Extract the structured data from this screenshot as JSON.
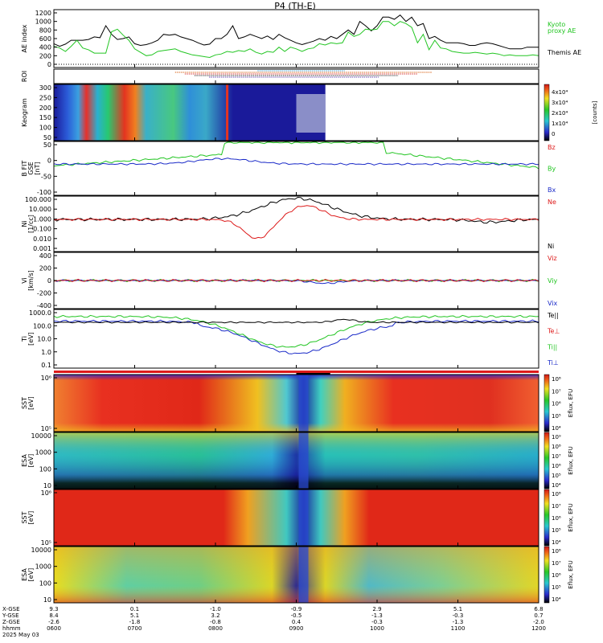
{
  "title": "P4 (TH-E)",
  "chart_data": [
    {
      "type": "line",
      "panel": "ae",
      "ylabel": "AE index",
      "yticks": [
        "1200",
        "1000",
        "800",
        "600",
        "400",
        "200",
        "0"
      ],
      "ylim": [
        0,
        1200
      ],
      "legend": [
        {
          "text": "Kyoto",
          "color": "#22c522"
        },
        {
          "text": "proxy AE",
          "color": "#22c522"
        },
        {
          "text": "Themis AE",
          "color": "#000000"
        }
      ],
      "series": [
        {
          "name": "Themis AE",
          "color": "#000000",
          "values": [
            480,
            420,
            470,
            560,
            560,
            560,
            580,
            640,
            620,
            900,
            700,
            580,
            600,
            640,
            480,
            440,
            460,
            500,
            560,
            700,
            680,
            700,
            640,
            600,
            560,
            500,
            450,
            470,
            600,
            600,
            700,
            900,
            600,
            640,
            700,
            650,
            600,
            660,
            580,
            700,
            620,
            560,
            500,
            460,
            500,
            540,
            600,
            560,
            650,
            600,
            700,
            800,
            700,
            1000,
            900,
            780,
            900,
            1100,
            1100,
            1050,
            1150,
            1000,
            1100,
            900,
            950,
            600,
            650,
            560,
            500,
            500,
            500,
            480,
            440,
            440,
            480,
            500,
            480,
            440,
            400,
            360,
            360,
            360,
            400,
            400,
            400
          ]
        },
        {
          "name": "Kyoto proxy AE",
          "color": "#22c522",
          "values": [
            420,
            380,
            300,
            420,
            560,
            380,
            340,
            260,
            260,
            260,
            760,
            820,
            680,
            560,
            360,
            280,
            200,
            220,
            300,
            320,
            340,
            360,
            300,
            260,
            220,
            200,
            180,
            160,
            220,
            240,
            300,
            280,
            320,
            300,
            360,
            280,
            240,
            300,
            280,
            400,
            300,
            400,
            360,
            300,
            360,
            380,
            480,
            450,
            500,
            480,
            500,
            750,
            650,
            700,
            820,
            800,
            820,
            1000,
            1000,
            900,
            1000,
            950,
            860,
            500,
            700,
            340,
            560,
            380,
            360,
            300,
            280,
            260,
            260,
            280,
            260,
            240,
            260,
            240,
            200,
            220,
            200,
            200,
            200,
            220,
            200
          ]
        }
      ]
    },
    {
      "type": "line",
      "panel": "roi",
      "ylabel": "ROI",
      "bars": [
        {
          "color": "#4aa8d8",
          "start": 0.42,
          "end": 0.6,
          "row": 0
        },
        {
          "color": "#d8641a",
          "start": 0.25,
          "end": 0.78,
          "row": 1
        },
        {
          "color": "#d83a3a",
          "start": 0.27,
          "end": 0.75,
          "row": 2
        },
        {
          "color": "#333333",
          "start": 0.29,
          "end": 0.71,
          "row": 3
        },
        {
          "color": "#6a4ab0",
          "start": 0.32,
          "end": 0.67,
          "row": 4
        }
      ]
    },
    {
      "type": "heatmap",
      "panel": "keogram",
      "ylabel": "Keogram",
      "yticks": [
        "300",
        "250",
        "200",
        "150",
        "100",
        "50"
      ],
      "colorbar": {
        "ticks": [
          "4x10⁴",
          "3x10⁴",
          "2x10⁴",
          "1x10⁴",
          "0"
        ],
        "label": "[counts]"
      }
    },
    {
      "type": "line",
      "panel": "bfield",
      "ylabel": [
        "B FIT",
        "GSE",
        "[nT]"
      ],
      "yticks": [
        "50",
        "0",
        "-50",
        "-100"
      ],
      "ylim": [
        -100,
        70
      ],
      "legend": [
        {
          "text": "Bz",
          "color": "#dd1a1a"
        },
        {
          "text": "By",
          "color": "#22c522"
        },
        {
          "text": "Bx",
          "color": "#1a2ac8"
        }
      ]
    },
    {
      "type": "line",
      "panel": "density",
      "ylabel": [
        "Ni",
        "[1/cc]"
      ],
      "yticks": [
        "100.000",
        "10.000",
        "1.000",
        "0.100",
        "0.010",
        "0.001"
      ],
      "legend": [
        {
          "text": "Ne",
          "color": "#dd1a1a"
        },
        {
          "text": "Ni",
          "color": "#000000"
        }
      ]
    },
    {
      "type": "line",
      "panel": "velocity",
      "ylabel": [
        "Vi",
        "[km/s]"
      ],
      "yticks": [
        "400",
        "200",
        "0",
        "-200",
        "-400"
      ],
      "ylim": [
        -500,
        500
      ],
      "legend": [
        {
          "text": "Viz",
          "color": "#dd1a1a"
        },
        {
          "text": "Viy",
          "color": "#22c522"
        },
        {
          "text": "Vix",
          "color": "#1a2ac8"
        }
      ]
    },
    {
      "type": "line",
      "panel": "temperature",
      "ylabel": [
        "Ti",
        "[eV]"
      ],
      "yticks": [
        "1000.0",
        "100.0",
        "10.0",
        "1.0",
        "0.1"
      ],
      "legend": [
        {
          "text": "Te||",
          "color": "#000000"
        },
        {
          "text": "Te⊥",
          "color": "#dd1a1a"
        },
        {
          "text": "Ti||",
          "color": "#22c522"
        },
        {
          "text": "Ti⊥",
          "color": "#1a2ac8"
        }
      ]
    },
    {
      "type": "heatmap",
      "panel": "sst-electron",
      "ylabel": [
        "SST",
        "[eV]"
      ],
      "yticks": [
        "10⁶",
        "10⁵"
      ],
      "colorbar": {
        "ticks": [
          "10⁸",
          "10⁷",
          "10⁶",
          "10⁵",
          "10⁴"
        ],
        "label": "Eflux, EFU"
      }
    },
    {
      "type": "heatmap",
      "panel": "esa-electron",
      "ylabel": [
        "ESA",
        "[eV]"
      ],
      "yticks": [
        "10000",
        "1000",
        "100",
        "10"
      ],
      "colorbar": {
        "ticks": [
          "10⁹",
          "10⁸",
          "10⁷",
          "10⁶",
          "10⁵",
          "10⁴"
        ],
        "label": "Eflux, EFU"
      }
    },
    {
      "type": "heatmap",
      "panel": "sst-ion",
      "ylabel": [
        "SST",
        "[eV]"
      ],
      "yticks": [
        "10⁶",
        "10⁵"
      ],
      "colorbar": {
        "ticks": [
          "10⁸",
          "10⁷",
          "10⁶",
          "10⁵",
          "10⁴"
        ],
        "label": "Eflux, EFU"
      }
    },
    {
      "type": "heatmap",
      "panel": "esa-ion",
      "ylabel": [
        "ESA",
        "[eV]"
      ],
      "yticks": [
        "10000",
        "1000",
        "100",
        "10"
      ],
      "colorbar": {
        "ticks": [
          "10⁸",
          "10⁷",
          "10⁶",
          "10⁵",
          "10⁴"
        ],
        "label": "Eflux, EFU"
      }
    }
  ],
  "footer": {
    "row_labels": [
      "X-GSE",
      "Y-GSE",
      "Z-GSE",
      "hhmm",
      "2025 May 03"
    ],
    "columns": [
      {
        "x": "9.3",
        "y": "8.4",
        "z": "-2.6",
        "t": "0600"
      },
      {
        "x": "0.1",
        "y": "5.1",
        "z": "-1.8",
        "t": "0700"
      },
      {
        "x": "-1.0",
        "y": "3.2",
        "z": "-0.8",
        "t": "0800"
      },
      {
        "x": "-0.9",
        "y": "-0.5",
        "z": "0.4",
        "t": "0900"
      },
      {
        "x": "2.9",
        "y": "-1.3",
        "z": "-0.3",
        "t": "1000"
      },
      {
        "x": "5.1",
        "y": "-0.3",
        "z": "-1.3",
        "t": "1100"
      },
      {
        "x": "6.8",
        "y": "0.7",
        "z": "-2.0",
        "t": "1200"
      }
    ]
  }
}
